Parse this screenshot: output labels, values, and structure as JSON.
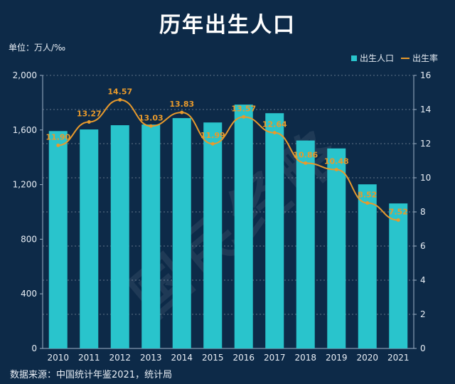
{
  "title": "历年出生人口",
  "unit_label": "单位：万人/‰",
  "source": "数据来源：中国统计年鉴2021，统计局",
  "watermark": "国民经略",
  "colors": {
    "bar": "#29c4cc",
    "line": "#e89a2c",
    "background": "#0d2a48"
  },
  "chart_data": {
    "type": "bar",
    "categories": [
      "2010",
      "2011",
      "2012",
      "2013",
      "2014",
      "2015",
      "2016",
      "2017",
      "2018",
      "2019",
      "2020",
      "2021"
    ],
    "series": [
      {
        "name": "出生人口",
        "type": "bar",
        "axis": "left",
        "values": [
          1592,
          1604,
          1635,
          1640,
          1687,
          1655,
          1786,
          1723,
          1523,
          1465,
          1202,
          1062
        ]
      },
      {
        "name": "出生率",
        "type": "line",
        "axis": "right",
        "values": [
          11.9,
          13.27,
          14.57,
          13.03,
          13.83,
          11.99,
          13.57,
          12.64,
          10.86,
          10.48,
          8.52,
          7.52
        ],
        "labels": [
          "11.90",
          "13.27",
          "14.57",
          "13.03",
          "13.83",
          "11.99",
          "13.57",
          "12.64",
          "10.86",
          "10.48",
          "8.52",
          "7.52"
        ]
      }
    ],
    "left_axis": {
      "min": 0,
      "max": 2000,
      "ticks": [
        "0",
        "400",
        "800",
        "1,200",
        "1,600",
        "2,000"
      ],
      "tick_values": [
        0,
        400,
        800,
        1200,
        1600,
        2000
      ]
    },
    "right_axis": {
      "min": 0,
      "max": 16,
      "ticks": [
        "0",
        "2",
        "4",
        "6",
        "8",
        "10",
        "12",
        "14",
        "16"
      ],
      "tick_values": [
        0,
        2,
        4,
        6,
        8,
        10,
        12,
        14,
        16
      ]
    },
    "grid": true,
    "legend": "top-right"
  }
}
